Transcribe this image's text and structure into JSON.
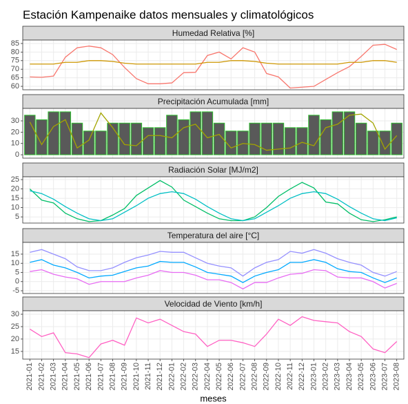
{
  "title": "Estación Kampenaike datos mensuales y climatológicos",
  "chart_data": [
    {
      "type": "line",
      "title": "Humedad Relativa [%]",
      "ylim": [
        58,
        87
      ],
      "yticks": [
        60,
        65,
        70,
        75,
        80,
        85
      ],
      "grid": true,
      "series": [
        {
          "type": "line",
          "color": "#F8766D",
          "values": [
            65.5,
            65.3,
            66,
            77,
            82.5,
            83.5,
            82.5,
            78.5,
            71,
            64.5,
            61.5,
            61.5,
            62,
            68,
            68.2,
            78,
            80,
            76,
            82.5,
            80,
            67.5,
            65.5,
            59,
            59.5,
            60,
            64,
            68,
            71.5,
            77.5,
            84,
            84.5,
            81.5
          ]
        },
        {
          "type": "line",
          "color": "#CD9600",
          "values": [
            73,
            73,
            73,
            74,
            74,
            75,
            75,
            74.5,
            73.5,
            73,
            73,
            73,
            73,
            73,
            73,
            74,
            74,
            75,
            75,
            74.5,
            73.5,
            73,
            73,
            73,
            73,
            73,
            73,
            74,
            74,
            75,
            75,
            74
          ]
        }
      ]
    },
    {
      "type": "line",
      "title": "Precipitación Acumulada [mm]",
      "ylim": [
        -3,
        41
      ],
      "yticks": [
        0,
        10,
        20,
        30
      ],
      "grid": true,
      "series": [
        {
          "type": "bar",
          "color": "#595959",
          "edgecolor": "#31C131",
          "values": [
            35,
            31,
            38,
            38,
            28,
            21,
            21,
            28,
            28,
            28,
            24,
            24,
            35,
            31,
            38,
            38,
            28,
            21,
            21,
            28,
            28,
            28,
            24,
            24,
            35,
            31,
            38,
            38,
            28,
            21,
            21,
            28
          ]
        },
        {
          "type": "line",
          "color": "#A3A500",
          "values": [
            29,
            9,
            25,
            31,
            6,
            13,
            37,
            24,
            9,
            8,
            17,
            17,
            15,
            24,
            27,
            15,
            18,
            6,
            10,
            9,
            4,
            5,
            6,
            11,
            8,
            24,
            27,
            35,
            36,
            28,
            5,
            17
          ]
        }
      ]
    },
    {
      "type": "line",
      "title": "Radiación Solar [MJ/m2]",
      "ylim": [
        1.7,
        26.5
      ],
      "yticks": [
        5,
        10,
        15,
        20,
        25
      ],
      "grid": true,
      "series": [
        {
          "type": "line",
          "color": "#00BE67",
          "values": [
            20,
            14,
            12.5,
            7,
            4,
            2.5,
            3,
            6,
            9.5,
            16.5,
            20.5,
            24.5,
            21,
            14,
            10.5,
            7,
            4,
            3,
            3,
            5,
            10,
            16,
            20,
            23.5,
            20.5,
            13,
            12,
            7,
            3.5,
            2.5,
            3.5,
            5
          ]
        },
        {
          "type": "line",
          "color": "#00BFC4",
          "values": [
            19,
            17.5,
            14.5,
            10.5,
            7,
            4,
            3,
            4,
            7.5,
            11,
            15,
            17.5,
            18.5,
            17.5,
            14.5,
            10.5,
            7,
            4,
            3,
            4,
            7.5,
            11,
            15,
            17.5,
            18.5,
            17.5,
            14.5,
            10.5,
            7,
            4,
            3,
            4.5
          ]
        }
      ]
    },
    {
      "type": "line",
      "title": "Temperatura del aire [°C]",
      "ylim": [
        -6.5,
        21.4
      ],
      "yticks": [
        -5,
        0,
        5,
        10,
        15
      ],
      "grid": true,
      "series": [
        {
          "type": "line",
          "color": "#9590FF",
          "values": [
            16,
            17.5,
            15,
            12.5,
            8,
            6,
            6,
            7.5,
            10.5,
            13,
            14.5,
            16.5,
            16,
            16,
            13,
            10,
            8.5,
            7.5,
            3,
            7.5,
            10.5,
            12,
            16.5,
            15.5,
            17.5,
            15.5,
            12.5,
            10.5,
            9,
            5,
            3,
            5.5
          ]
        },
        {
          "type": "line",
          "color": "#00A9FF",
          "values": [
            10.5,
            12,
            9,
            7.5,
            5,
            2,
            3,
            3.5,
            5.5,
            7.5,
            8.5,
            11,
            10.5,
            10.5,
            8,
            5,
            4,
            3,
            -0.5,
            3,
            5,
            6.5,
            10.5,
            10.5,
            12,
            10.5,
            7,
            5.5,
            5,
            2,
            -0.5,
            2
          ]
        },
        {
          "type": "line",
          "color": "#E76BF3",
          "values": [
            5.5,
            6.5,
            4,
            2.5,
            1.5,
            -1.5,
            0,
            0,
            0,
            2,
            3.5,
            6,
            5,
            5,
            3.5,
            1,
            1,
            -0.5,
            -4,
            -0.5,
            -0.5,
            2,
            4,
            4.5,
            6.5,
            6,
            2.5,
            2,
            2,
            0,
            -3.5,
            -1
          ]
        }
      ]
    },
    {
      "type": "line",
      "title": "Velocidad de Viento [km/h]",
      "ylim": [
        11.9,
        31.4
      ],
      "yticks": [
        15,
        20,
        25,
        30
      ],
      "grid": true,
      "x_label": "meses",
      "categories": [
        "2021-01",
        "2021-02",
        "2021-03",
        "2021-04",
        "2021-05",
        "2021-06",
        "2021-07",
        "2021-08",
        "2021-09",
        "2021-10",
        "2021-11",
        "2021-12",
        "2022-01",
        "2022-02",
        "2022-03",
        "2022-04",
        "2022-05",
        "2022-06",
        "2022-07",
        "2022-08",
        "2022-09",
        "2022-10",
        "2022-11",
        "2022-12",
        "2023-01",
        "2023-02",
        "2023-03",
        "2023-04",
        "2023-05",
        "2023-06",
        "2023-07",
        "2023-08"
      ],
      "series": [
        {
          "type": "line",
          "color": "#FF61C3",
          "values": [
            24,
            21,
            22.5,
            14.5,
            14,
            12.5,
            18,
            19.5,
            17.5,
            28.5,
            26.5,
            28,
            25.5,
            23,
            22,
            17,
            19.5,
            19.5,
            18.5,
            17,
            22,
            28,
            25.5,
            29,
            27.5,
            27,
            26.5,
            23,
            21,
            16,
            14.5,
            19
          ]
        }
      ]
    }
  ]
}
